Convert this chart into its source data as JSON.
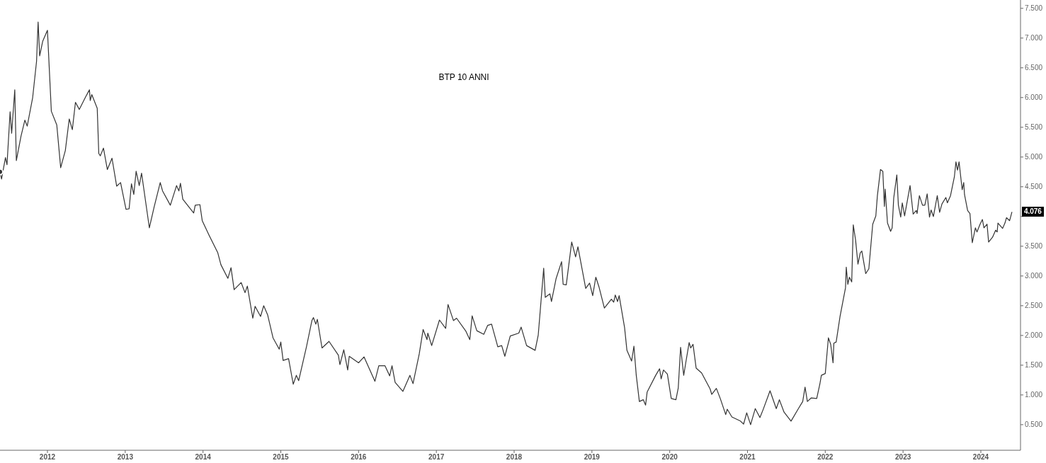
{
  "chart_data": {
    "type": "line",
    "title": "BTP 10 ANNI",
    "x": [
      2011.39,
      2011.41,
      2011.46,
      2011.48,
      2011.52,
      2011.54,
      2011.58,
      2011.6,
      2011.66,
      2011.71,
      2011.74,
      2011.81,
      2011.86,
      2011.88,
      2011.9,
      2011.94,
      2012.0,
      2012.05,
      2012.12,
      2012.17,
      2012.23,
      2012.28,
      2012.32,
      2012.36,
      2012.41,
      2012.49,
      2012.54,
      2012.55,
      2012.57,
      2012.64,
      2012.66,
      2012.68,
      2012.72,
      2012.77,
      2012.83,
      2012.89,
      2012.94,
      2013.01,
      2013.05,
      2013.08,
      2013.11,
      2013.14,
      2013.18,
      2013.21,
      2013.31,
      2013.37,
      2013.45,
      2013.48,
      2013.58,
      2013.66,
      2013.69,
      2013.71,
      2013.74,
      2013.88,
      2013.9,
      2013.96,
      2013.99,
      2014.08,
      2014.19,
      2014.23,
      2014.32,
      2014.36,
      2014.4,
      2014.49,
      2014.54,
      2014.57,
      2014.64,
      2014.67,
      2014.74,
      2014.78,
      2014.83,
      2014.9,
      2014.98,
      2015.0,
      2015.03,
      2015.1,
      2015.16,
      2015.2,
      2015.23,
      2015.33,
      2015.4,
      2015.42,
      2015.45,
      2015.47,
      2015.53,
      2015.62,
      2015.74,
      2015.76,
      2015.81,
      2015.86,
      2015.88,
      2016.0,
      2016.07,
      2016.21,
      2016.26,
      2016.34,
      2016.4,
      2016.43,
      2016.47,
      2016.57,
      2016.66,
      2016.7,
      2016.78,
      2016.83,
      2016.88,
      2016.89,
      2016.94,
      2017.04,
      2017.12,
      2017.15,
      2017.22,
      2017.26,
      2017.38,
      2017.43,
      2017.46,
      2017.52,
      2017.61,
      2017.66,
      2017.71,
      2017.79,
      2017.84,
      2017.88,
      2017.95,
      2018.06,
      2018.09,
      2018.16,
      2018.27,
      2018.31,
      2018.38,
      2018.4,
      2018.46,
      2018.48,
      2018.54,
      2018.61,
      2018.63,
      2018.67,
      2018.74,
      2018.79,
      2018.82,
      2018.92,
      2018.97,
      2019.01,
      2019.05,
      2019.09,
      2019.16,
      2019.25,
      2019.28,
      2019.3,
      2019.33,
      2019.35,
      2019.42,
      2019.45,
      2019.51,
      2019.54,
      2019.57,
      2019.61,
      2019.66,
      2019.69,
      2019.71,
      2019.82,
      2019.87,
      2019.89,
      2019.92,
      2019.97,
      2020.02,
      2020.08,
      2020.11,
      2020.14,
      2020.18,
      2020.21,
      2020.25,
      2020.27,
      2020.3,
      2020.34,
      2020.41,
      2020.52,
      2020.54,
      2020.6,
      2020.65,
      2020.72,
      2020.74,
      2020.8,
      2020.91,
      2020.95,
      2020.99,
      2021.04,
      2021.1,
      2021.16,
      2021.2,
      2021.29,
      2021.37,
      2021.41,
      2021.47,
      2021.56,
      2021.65,
      2021.71,
      2021.74,
      2021.77,
      2021.82,
      2021.89,
      2021.93,
      2021.95,
      2022.0,
      2022.04,
      2022.07,
      2022.1,
      2022.11,
      2022.14,
      2022.19,
      2022.26,
      2022.27,
      2022.29,
      2022.31,
      2022.34,
      2022.36,
      2022.39,
      2022.42,
      2022.45,
      2022.47,
      2022.52,
      2022.56,
      2022.61,
      2022.65,
      2022.67,
      2022.71,
      2022.74,
      2022.76,
      2022.77,
      2022.8,
      2022.84,
      2022.86,
      2022.88,
      2022.92,
      2022.94,
      2022.97,
      2022.99,
      2023.02,
      2023.09,
      2023.13,
      2023.17,
      2023.18,
      2023.21,
      2023.25,
      2023.28,
      2023.31,
      2023.34,
      2023.36,
      2023.39,
      2023.44,
      2023.47,
      2023.5,
      2023.55,
      2023.57,
      2023.61,
      2023.66,
      2023.68,
      2023.7,
      2023.72,
      2023.76,
      2023.78,
      2023.79,
      2023.83,
      2023.86,
      2023.89,
      2023.93,
      2023.95,
      2023.99,
      2024.02,
      2024.04,
      2024.08,
      2024.1,
      2024.15,
      2024.19,
      2024.21,
      2024.22,
      2024.28,
      2024.31,
      2024.33,
      2024.37,
      2024.4
    ],
    "series": [
      {
        "color": "#333333",
        "values": [
          4.75,
          4.63,
          4.99,
          4.87,
          5.76,
          5.4,
          6.13,
          4.94,
          5.35,
          5.62,
          5.52,
          6.0,
          6.61,
          7.27,
          6.7,
          6.95,
          7.13,
          5.77,
          5.54,
          4.82,
          5.11,
          5.64,
          5.46,
          5.92,
          5.8,
          6.01,
          6.13,
          5.95,
          6.05,
          5.82,
          5.06,
          5.02,
          5.15,
          4.79,
          4.98,
          4.51,
          4.57,
          4.12,
          4.13,
          4.55,
          4.37,
          4.76,
          4.52,
          4.73,
          3.81,
          4.15,
          4.57,
          4.43,
          4.19,
          4.52,
          4.43,
          4.56,
          4.29,
          4.06,
          4.19,
          4.2,
          3.93,
          3.68,
          3.39,
          3.19,
          2.96,
          3.14,
          2.77,
          2.89,
          2.72,
          2.83,
          2.29,
          2.49,
          2.32,
          2.5,
          2.35,
          1.96,
          1.77,
          1.89,
          1.58,
          1.61,
          1.18,
          1.33,
          1.24,
          1.81,
          2.25,
          2.3,
          2.19,
          2.27,
          1.79,
          1.9,
          1.67,
          1.51,
          1.76,
          1.42,
          1.65,
          1.54,
          1.64,
          1.23,
          1.49,
          1.49,
          1.32,
          1.49,
          1.21,
          1.06,
          1.33,
          1.19,
          1.69,
          2.1,
          1.93,
          2.04,
          1.83,
          2.26,
          2.12,
          2.52,
          2.25,
          2.29,
          2.07,
          1.93,
          2.33,
          2.08,
          2.02,
          2.17,
          2.19,
          1.81,
          1.83,
          1.65,
          1.99,
          2.04,
          2.14,
          1.83,
          1.75,
          2.01,
          3.13,
          2.64,
          2.7,
          2.57,
          2.96,
          3.24,
          2.86,
          2.85,
          3.57,
          3.32,
          3.49,
          2.79,
          2.88,
          2.67,
          2.98,
          2.82,
          2.46,
          2.61,
          2.56,
          2.68,
          2.57,
          2.67,
          2.13,
          1.75,
          1.57,
          1.82,
          1.33,
          0.89,
          0.92,
          0.83,
          1.05,
          1.33,
          1.44,
          1.27,
          1.42,
          1.35,
          0.94,
          0.92,
          1.12,
          1.8,
          1.33,
          1.57,
          1.88,
          1.79,
          1.85,
          1.45,
          1.37,
          1.1,
          1.01,
          1.11,
          0.94,
          0.67,
          0.76,
          0.63,
          0.56,
          0.51,
          0.7,
          0.5,
          0.77,
          0.62,
          0.75,
          1.07,
          0.77,
          0.92,
          0.71,
          0.56,
          0.76,
          0.89,
          1.13,
          0.89,
          0.95,
          0.94,
          1.18,
          1.33,
          1.36,
          1.96,
          1.85,
          1.54,
          1.87,
          1.89,
          2.32,
          2.8,
          3.15,
          2.86,
          2.98,
          2.9,
          3.86,
          3.6,
          3.2,
          3.39,
          3.42,
          3.04,
          3.12,
          3.87,
          4.01,
          4.35,
          4.79,
          4.76,
          4.17,
          4.46,
          3.89,
          3.75,
          3.81,
          4.31,
          4.7,
          4.19,
          3.99,
          4.23,
          4.01,
          4.52,
          4.04,
          4.1,
          4.05,
          4.35,
          4.19,
          4.19,
          4.38,
          3.99,
          4.11,
          4.0,
          4.35,
          4.07,
          4.21,
          4.32,
          4.23,
          4.35,
          4.67,
          4.92,
          4.78,
          4.92,
          4.45,
          4.57,
          4.37,
          4.1,
          4.05,
          3.56,
          3.81,
          3.74,
          3.87,
          3.95,
          3.81,
          3.87,
          3.57,
          3.65,
          3.77,
          3.74,
          3.89,
          3.8,
          3.89,
          3.98,
          3.93,
          4.076
        ]
      }
    ],
    "xlim": [
      2011.39,
      2024.51
    ],
    "xticks": [
      2012,
      2013,
      2014,
      2015,
      2016,
      2017,
      2018,
      2019,
      2020,
      2021,
      2022,
      2023,
      2024
    ],
    "ylim": [
      0.07,
      7.64
    ],
    "yticks": [
      {
        "value": 0.5,
        "label": "0.500"
      },
      {
        "value": 1,
        "label": "1.000"
      },
      {
        "value": 1.5,
        "label": "1.500"
      },
      {
        "value": 2,
        "label": "2.000"
      },
      {
        "value": 2.5,
        "label": "2.500"
      },
      {
        "value": 3,
        "label": "3.000"
      },
      {
        "value": 3.5,
        "label": "3.500"
      },
      {
        "value": 4,
        "label": null
      },
      {
        "value": 4.5,
        "label": "4.500"
      },
      {
        "value": 5,
        "label": "5.000"
      },
      {
        "value": 5.5,
        "label": "5.500"
      },
      {
        "value": 6,
        "label": "6.000"
      },
      {
        "value": 6.5,
        "label": "6.500"
      },
      {
        "value": 7,
        "label": "7.000"
      },
      {
        "value": 7.5,
        "label": "7.500"
      }
    ],
    "annotations": [
      {
        "text": "4.076",
        "x": 2024.4,
        "y": 4.076
      }
    ],
    "grid": false,
    "legend": false,
    "marker": "none",
    "line_style": "solid"
  }
}
